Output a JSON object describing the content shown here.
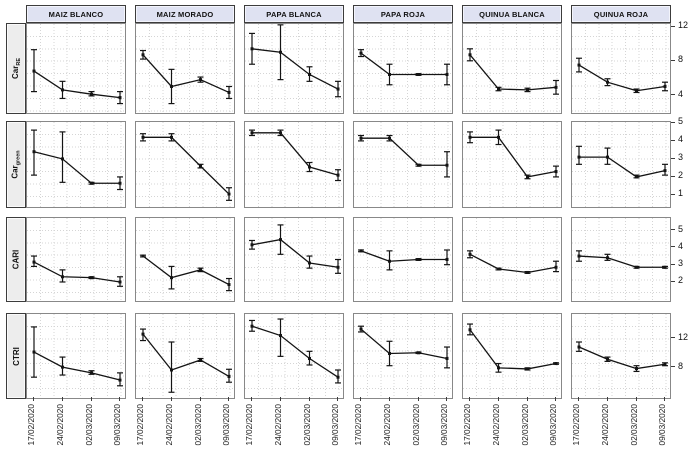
{
  "figure": {
    "background": "#ffffff",
    "header_bg": "#dfe2f2",
    "strip_bg": "#ededed",
    "grid_color": "#d5d5d5",
    "line_color": "#141414",
    "border_color": "#888888",
    "tick_color": "#3c3c3c"
  },
  "chart_data": {
    "type": "line",
    "layout": "facet-grid",
    "error_bars": true,
    "grid": "dotted",
    "legend_position": "none",
    "columns": [
      "MAIZ BLANCO",
      "MAIZ MORADO",
      "PAPA BLANCA",
      "PAPA ROJA",
      "QUINUA BLANCA",
      "QUINUA ROJA"
    ],
    "x": [
      "17/02/2020",
      "24/02/2020",
      "02/03/2020",
      "09/03/2020"
    ],
    "rows": [
      {
        "label_main": "Car",
        "label_sub": "RE",
        "ticks": [
          4,
          8,
          12
        ],
        "ylim": [
          1.9,
          12.3
        ],
        "panels": [
          {
            "v": [
              6.8,
              4.6,
              4.1,
              3.7
            ],
            "lo": [
              4.4,
              3.6,
              3.9,
              3.0
            ],
            "hi": [
              9.3,
              5.6,
              4.4,
              4.4
            ]
          },
          {
            "v": [
              8.7,
              5.0,
              5.8,
              4.3
            ],
            "lo": [
              8.2,
              3.0,
              5.5,
              3.6
            ],
            "hi": [
              9.2,
              7.0,
              6.1,
              5.0
            ]
          },
          {
            "v": [
              9.4,
              9.0,
              6.4,
              4.7
            ],
            "lo": [
              7.6,
              5.8,
              5.6,
              3.8
            ],
            "hi": [
              11.2,
              12.2,
              7.3,
              5.6
            ]
          },
          {
            "v": [
              8.9,
              6.4,
              6.4,
              6.4
            ],
            "lo": [
              8.5,
              5.2,
              6.3,
              5.2
            ],
            "hi": [
              9.3,
              7.6,
              6.5,
              7.6
            ]
          },
          {
            "v": [
              8.7,
              4.7,
              4.6,
              4.9
            ],
            "lo": [
              8.0,
              4.5,
              4.4,
              4.1
            ],
            "hi": [
              9.4,
              4.9,
              4.8,
              5.7
            ]
          },
          {
            "v": [
              7.5,
              5.5,
              4.5,
              5.0
            ],
            "lo": [
              6.7,
              5.1,
              4.3,
              4.5
            ],
            "hi": [
              8.3,
              5.9,
              4.7,
              5.5
            ]
          }
        ]
      },
      {
        "label_main": "Car",
        "label_sub": "green",
        "ticks": [
          1,
          2,
          3,
          4,
          5
        ],
        "ylim": [
          0.33,
          5.05
        ],
        "panels": [
          {
            "v": [
              3.4,
              3.0,
              1.65,
              1.65
            ],
            "lo": [
              2.1,
              1.7,
              1.6,
              1.3
            ],
            "hi": [
              4.6,
              4.5,
              1.7,
              2.0
            ]
          },
          {
            "v": [
              4.2,
              4.2,
              2.6,
              1.05
            ],
            "lo": [
              4.0,
              4.0,
              2.5,
              0.7
            ],
            "hi": [
              4.4,
              4.4,
              2.7,
              1.4
            ]
          },
          {
            "v": [
              4.45,
              4.45,
              2.55,
              2.1
            ],
            "lo": [
              4.3,
              4.3,
              2.3,
              1.8
            ],
            "hi": [
              4.6,
              4.6,
              2.8,
              2.4
            ]
          },
          {
            "v": [
              4.15,
              4.15,
              2.65,
              2.65
            ],
            "lo": [
              4.0,
              4.0,
              2.6,
              2.0
            ],
            "hi": [
              4.3,
              4.3,
              2.7,
              3.4
            ]
          },
          {
            "v": [
              4.2,
              4.2,
              2.0,
              2.3
            ],
            "lo": [
              3.9,
              3.8,
              1.9,
              2.0
            ],
            "hi": [
              4.5,
              4.6,
              2.1,
              2.6
            ]
          },
          {
            "v": [
              3.1,
              3.1,
              2.0,
              2.35
            ],
            "lo": [
              2.7,
              2.7,
              1.95,
              2.1
            ],
            "hi": [
              3.7,
              3.6,
              2.1,
              2.7
            ]
          }
        ]
      },
      {
        "label_main": "CARI",
        "label_sub": "",
        "ticks": [
          2,
          3,
          4,
          5
        ],
        "ylim": [
          0.9,
          5.7
        ],
        "panels": [
          {
            "v": [
              3.15,
              2.3,
              2.25,
              2.0
            ],
            "lo": [
              2.9,
              2.0,
              2.2,
              1.75
            ],
            "hi": [
              3.5,
              2.7,
              2.3,
              2.3
            ]
          },
          {
            "v": [
              3.5,
              2.25,
              2.7,
              1.85
            ],
            "lo": [
              3.45,
              1.6,
              2.6,
              1.5
            ],
            "hi": [
              3.55,
              2.9,
              2.8,
              2.2
            ]
          },
          {
            "v": [
              4.15,
              4.45,
              3.1,
              2.85
            ],
            "lo": [
              3.9,
              3.6,
              2.8,
              2.5
            ],
            "hi": [
              4.4,
              5.3,
              3.5,
              3.3
            ]
          },
          {
            "v": [
              3.8,
              3.2,
              3.3,
              3.3
            ],
            "lo": [
              3.75,
              2.7,
              3.25,
              3.0
            ],
            "hi": [
              3.85,
              3.8,
              3.35,
              3.85
            ]
          },
          {
            "v": [
              3.6,
              2.75,
              2.55,
              2.85
            ],
            "lo": [
              3.4,
              2.7,
              2.5,
              2.6
            ],
            "hi": [
              3.8,
              2.8,
              2.6,
              3.2
            ]
          },
          {
            "v": [
              3.5,
              3.4,
              2.85,
              2.85
            ],
            "lo": [
              3.2,
              3.25,
              2.8,
              2.8
            ],
            "hi": [
              3.8,
              3.6,
              2.9,
              2.9
            ]
          }
        ]
      },
      {
        "label_main": "CTRI",
        "label_sub": "",
        "ticks": [
          8,
          12
        ],
        "ylim": [
          3.7,
          15.4
        ],
        "panels": [
          {
            "v": [
              10.1,
              8.0,
              7.2,
              6.2
            ],
            "lo": [
              6.6,
              6.9,
              7.0,
              5.4
            ],
            "hi": [
              13.6,
              9.4,
              7.5,
              7.2
            ]
          },
          {
            "v": [
              12.6,
              7.6,
              9.0,
              6.7
            ],
            "lo": [
              11.7,
              4.5,
              8.8,
              5.9
            ],
            "hi": [
              13.3,
              11.5,
              9.2,
              7.7
            ]
          },
          {
            "v": [
              13.7,
              12.4,
              9.2,
              6.6
            ],
            "lo": [
              13.0,
              9.5,
              8.3,
              5.8
            ],
            "hi": [
              14.5,
              14.7,
              10.2,
              7.6
            ]
          },
          {
            "v": [
              13.3,
              9.9,
              10.0,
              9.2
            ],
            "lo": [
              12.9,
              8.2,
              9.9,
              7.9
            ],
            "hi": [
              13.7,
              11.6,
              10.1,
              10.8
            ]
          },
          {
            "v": [
              13.2,
              7.9,
              7.75,
              8.5
            ],
            "lo": [
              12.5,
              7.3,
              7.6,
              8.4
            ],
            "hi": [
              14.0,
              8.5,
              7.9,
              8.6
            ]
          },
          {
            "v": [
              10.8,
              9.1,
              7.8,
              8.4
            ],
            "lo": [
              10.2,
              8.8,
              7.4,
              8.2
            ],
            "hi": [
              11.5,
              9.4,
              8.2,
              8.6
            ]
          }
        ]
      }
    ]
  }
}
